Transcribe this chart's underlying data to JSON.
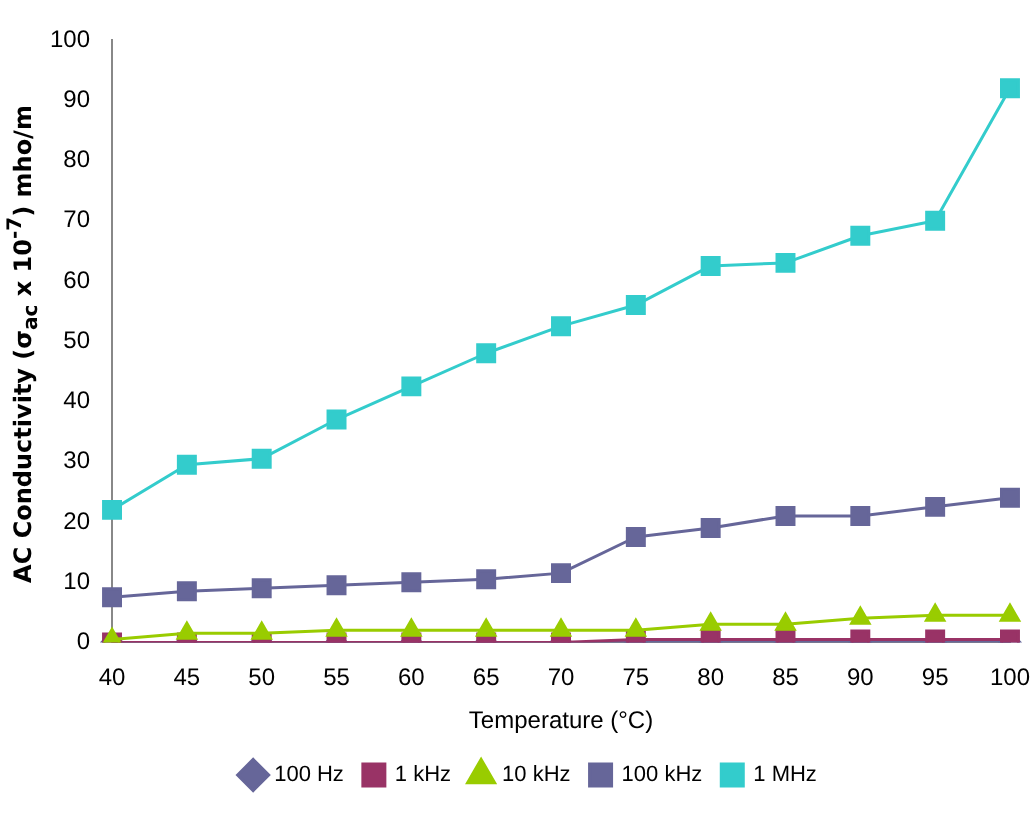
{
  "chart_data": {
    "type": "line",
    "xlabel": "Temperature (°C)",
    "ylabel": "AC Conductivity (σ$_{ac}$ x 10$^{-7}$) mho/m",
    "categories": [
      "40",
      "45",
      "50",
      "55",
      "60",
      "65",
      "70",
      "75",
      "80",
      "85",
      "90",
      "95",
      "100"
    ],
    "ylim": [
      0,
      100
    ],
    "yticks": [
      0,
      10,
      20,
      30,
      40,
      50,
      60,
      70,
      80,
      90,
      100
    ],
    "grid": false,
    "legend": "bottom",
    "series": [
      {
        "name": "100 Hz",
        "color": "#666699",
        "marker": "diamond",
        "values": [
          0,
          0,
          0,
          0,
          0,
          0,
          0,
          0,
          0,
          0,
          0,
          0,
          0
        ]
      },
      {
        "name": "1 kHz",
        "color": "#993366",
        "marker": "square",
        "values": [
          0,
          0,
          0,
          0,
          0,
          0,
          0,
          0.5,
          0.5,
          0.5,
          0.5,
          0.5,
          0.5
        ]
      },
      {
        "name": "10 kHz",
        "color": "#99cc00",
        "marker": "triangle",
        "values": [
          0.5,
          1.5,
          1.5,
          2,
          2,
          2,
          2,
          2,
          3,
          3,
          4,
          4.5,
          4.5
        ]
      },
      {
        "name": "100 kHz",
        "color": "#666699",
        "marker": "square",
        "values": [
          7.5,
          8.5,
          9,
          9.5,
          10,
          10.5,
          11.5,
          17.5,
          19,
          21,
          21,
          22.5,
          24
        ]
      },
      {
        "name": "1 MHz",
        "color": "#33cccc",
        "marker": "square",
        "values": [
          22,
          29.5,
          30.5,
          37,
          42.5,
          48,
          52.5,
          56,
          62.5,
          63,
          67.5,
          70,
          92
        ]
      }
    ]
  }
}
